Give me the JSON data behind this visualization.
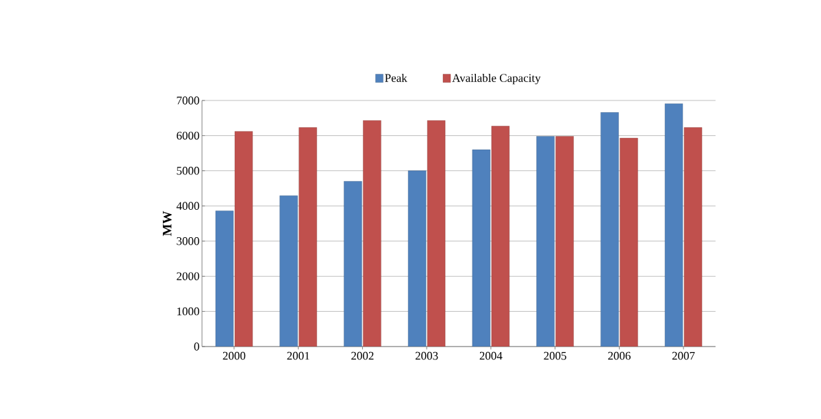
{
  "chart_data": {
    "type": "bar",
    "ylabel": "MW",
    "categories": [
      "2000",
      "2001",
      "2002",
      "2003",
      "2004",
      "2005",
      "2006",
      "2007"
    ],
    "series": [
      {
        "name": "Peak",
        "color": "#4f81bd",
        "values": [
          3860,
          4290,
          4700,
          5000,
          5600,
          5980,
          6660,
          6910
        ]
      },
      {
        "name": "Available Capacity",
        "color": "#c0504d",
        "values": [
          6120,
          6230,
          6430,
          6430,
          6270,
          5980,
          5930,
          6230
        ]
      }
    ],
    "ylim": [
      0,
      7000
    ],
    "yticks": [
      0,
      1000,
      2000,
      3000,
      4000,
      5000,
      6000,
      7000
    ],
    "grid": "y",
    "legend": "top"
  }
}
